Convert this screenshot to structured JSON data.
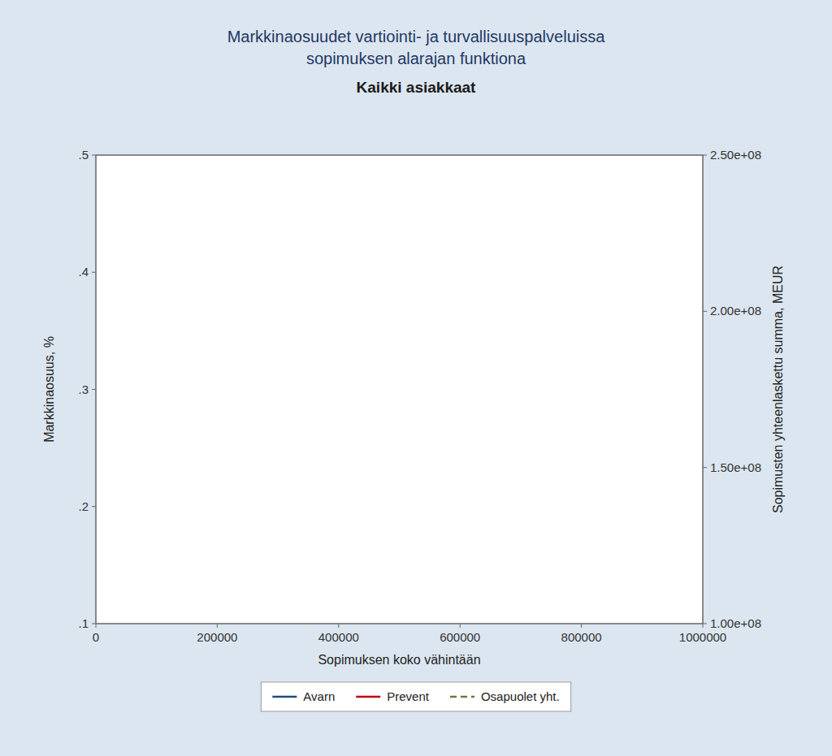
{
  "chart_data": {
    "type": "line",
    "title": [
      "Markkinaosuudet vartiointi- ja turvallisuuspalveluissa",
      "sopimuksen alarajan funktiona"
    ],
    "subtitle": "Kaikki asiakkaat",
    "x_label": "Sopimuksen koko vähintään",
    "y_label": "Markkinaosuus, %",
    "y2_label": "Sopimusten yhteenlaskettu summa, MEUR",
    "x": [],
    "xlim": [
      0,
      1000000
    ],
    "xticks": [
      0,
      200000,
      400000,
      600000,
      800000,
      1000000
    ],
    "ylim": [
      0.1,
      0.5
    ],
    "yticks": [
      {
        "value": 0.1,
        "label": ".1"
      },
      {
        "value": 0.2,
        "label": ".2"
      },
      {
        "value": 0.3,
        "label": ".3"
      },
      {
        "value": 0.4,
        "label": ".4"
      },
      {
        "value": 0.5,
        "label": ".5"
      }
    ],
    "y2lim": [
      100000000,
      250000000
    ],
    "y2ticks": [
      {
        "value": 100000000,
        "label": "1.00e+08"
      },
      {
        "value": 150000000,
        "label": "1.50e+08"
      },
      {
        "value": 200000000,
        "label": "2.00e+08"
      },
      {
        "value": 250000000,
        "label": "2.50e+08"
      }
    ],
    "grid": false,
    "legend": "bottom",
    "series": [
      {
        "name": "Avarn",
        "color": "#1f4e79",
        "line_style": "solid",
        "values": []
      },
      {
        "name": "Prevent",
        "color": "#c00000",
        "line_style": "solid",
        "values": []
      },
      {
        "name": "Osapuolet yht.",
        "color": "#6b7a3c",
        "line_style": "dashed",
        "values": []
      }
    ]
  }
}
